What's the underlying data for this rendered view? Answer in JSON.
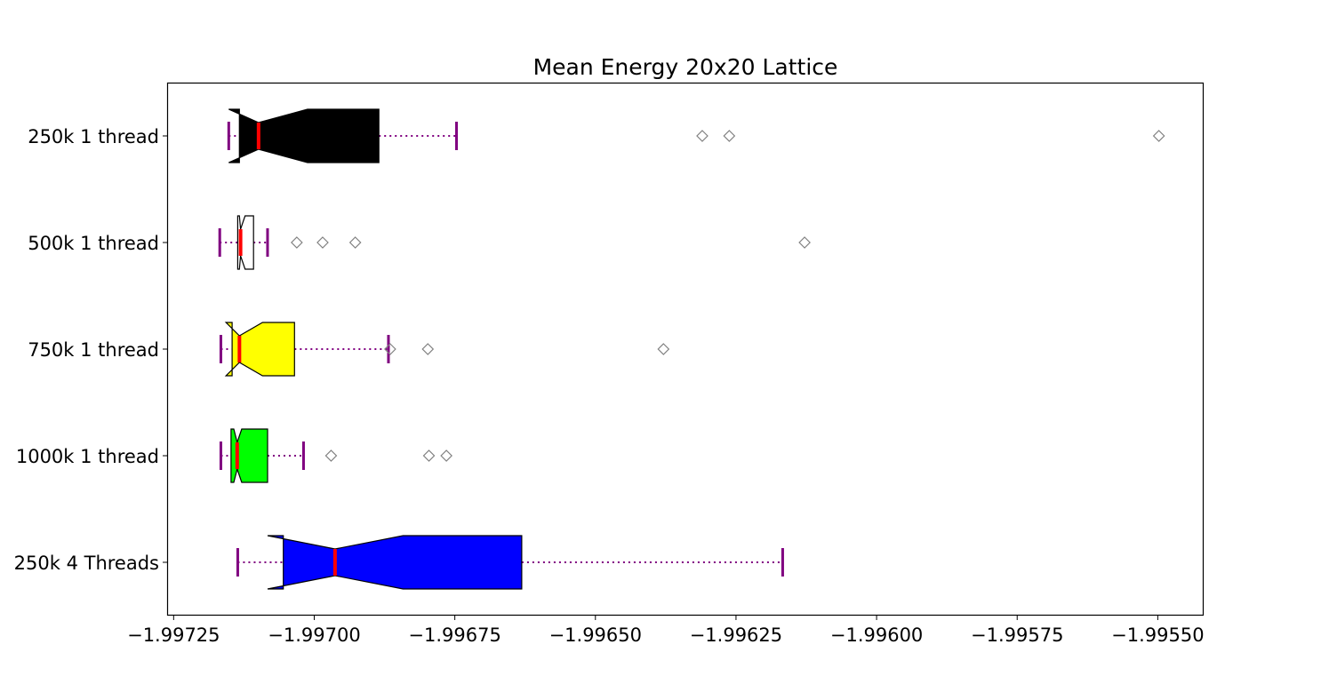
{
  "chart_data": {
    "type": "box",
    "orientation": "horizontal",
    "notched": true,
    "title": "Mean Energy 20x20 Lattice",
    "xlabel": "",
    "ylabel": "",
    "xlim": [
      -1.99726,
      -1.99542
    ],
    "grid": false,
    "x_ticks": [
      -1.99725,
      -1.997,
      -1.99675,
      -1.9965,
      -1.99625,
      -1.996,
      -1.99575,
      -1.9955
    ],
    "x_tick_labels": [
      "−1.99725",
      "−1.99700",
      "−1.99675",
      "−1.99650",
      "−1.99625",
      "−1.99600",
      "−1.99575",
      "−1.99550"
    ],
    "styles": {
      "whisker_color": "#800080",
      "cap_color": "#800080",
      "median_color": "#ff0000",
      "outlier_color": "#808080",
      "outlier_marker": "diamond",
      "box_edge_color": "#000000"
    },
    "series": [
      {
        "name": "250k 1 thread",
        "fill": "#000000",
        "whisker_low": -1.997152,
        "q1": -1.997133,
        "notch_low": -1.997152,
        "median": -1.997099,
        "notch_high": -1.997012,
        "q3": -1.996885,
        "whisker_high": -1.996747,
        "outliers": [
          -1.99631,
          -1.996262,
          -1.995498
        ]
      },
      {
        "name": "500k 1 thread",
        "fill": "#ffffff",
        "whisker_low": -1.997168,
        "q1": -1.997136,
        "notch_low": -1.997133,
        "median": -1.997131,
        "notch_high": -1.997123,
        "q3": -1.997108,
        "whisker_high": -1.997083,
        "outliers": [
          -1.997031,
          -1.996985,
          -1.996927,
          -1.996128
        ]
      },
      {
        "name": "750k 1 thread",
        "fill": "#ffff00",
        "whisker_low": -1.997166,
        "q1": -1.997146,
        "notch_low": -1.997157,
        "median": -1.997133,
        "notch_high": -1.997092,
        "q3": -1.997035,
        "whisker_high": -1.996868,
        "outliers": [
          -1.996865,
          -1.996798,
          -1.996379
        ]
      },
      {
        "name": "1000k 1 thread",
        "fill": "#00ff00",
        "whisker_low": -1.997166,
        "q1": -1.997148,
        "notch_low": -1.997143,
        "median": -1.997137,
        "notch_high": -1.997129,
        "q3": -1.997083,
        "whisker_high": -1.997019,
        "outliers": [
          -1.99697,
          -1.996796,
          -1.996765
        ]
      },
      {
        "name": "250k 4 Threads",
        "fill": "#0000ff",
        "whisker_low": -1.997136,
        "q1": -1.997055,
        "notch_low": -1.997083,
        "median": -1.996963,
        "notch_high": -1.996842,
        "q3": -1.996631,
        "whisker_high": -1.996167,
        "outliers": []
      }
    ]
  }
}
